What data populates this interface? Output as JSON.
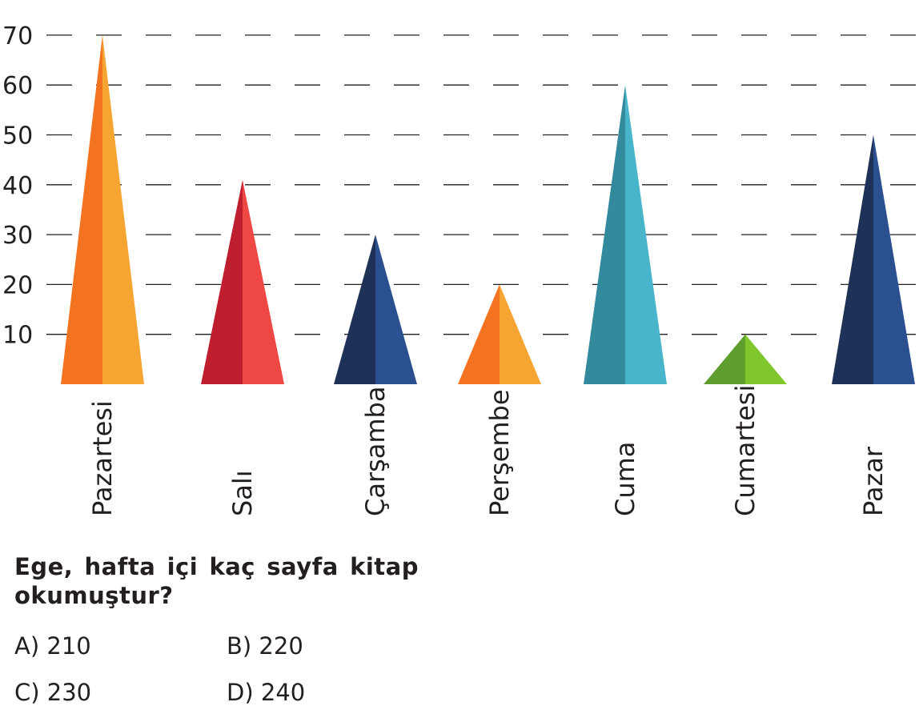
{
  "chart_data": {
    "type": "bar",
    "title": "",
    "xlabel": "",
    "ylabel": "",
    "categories": [
      "Pazartesi",
      "Salı",
      "Çarşamba",
      "Perşembe",
      "Cuma",
      "Cumartesi",
      "Pazar"
    ],
    "values": [
      70,
      41,
      30,
      20,
      60,
      10,
      50
    ],
    "yticks": [
      10,
      20,
      30,
      40,
      50,
      60,
      70
    ],
    "ylim": [
      0,
      70
    ],
    "grid": "dashed horizontal",
    "colors": [
      [
        "#f47321",
        "#f7a532"
      ],
      [
        "#be1e2d",
        "#ee4744"
      ],
      [
        "#1e3157",
        "#2a5090"
      ],
      [
        "#f47321",
        "#f7a532"
      ],
      [
        "#338a9c",
        "#49b5cb"
      ],
      [
        "#5e9e2e",
        "#7fc72d"
      ],
      [
        "#1e3157",
        "#2a5090"
      ]
    ]
  },
  "question": {
    "text": "Ege, hafta içi kaç sayfa kitap okumuştur?",
    "options": {
      "a": "A) 210",
      "b": "B) 220",
      "c": "C) 230",
      "d": "D) 240"
    }
  }
}
